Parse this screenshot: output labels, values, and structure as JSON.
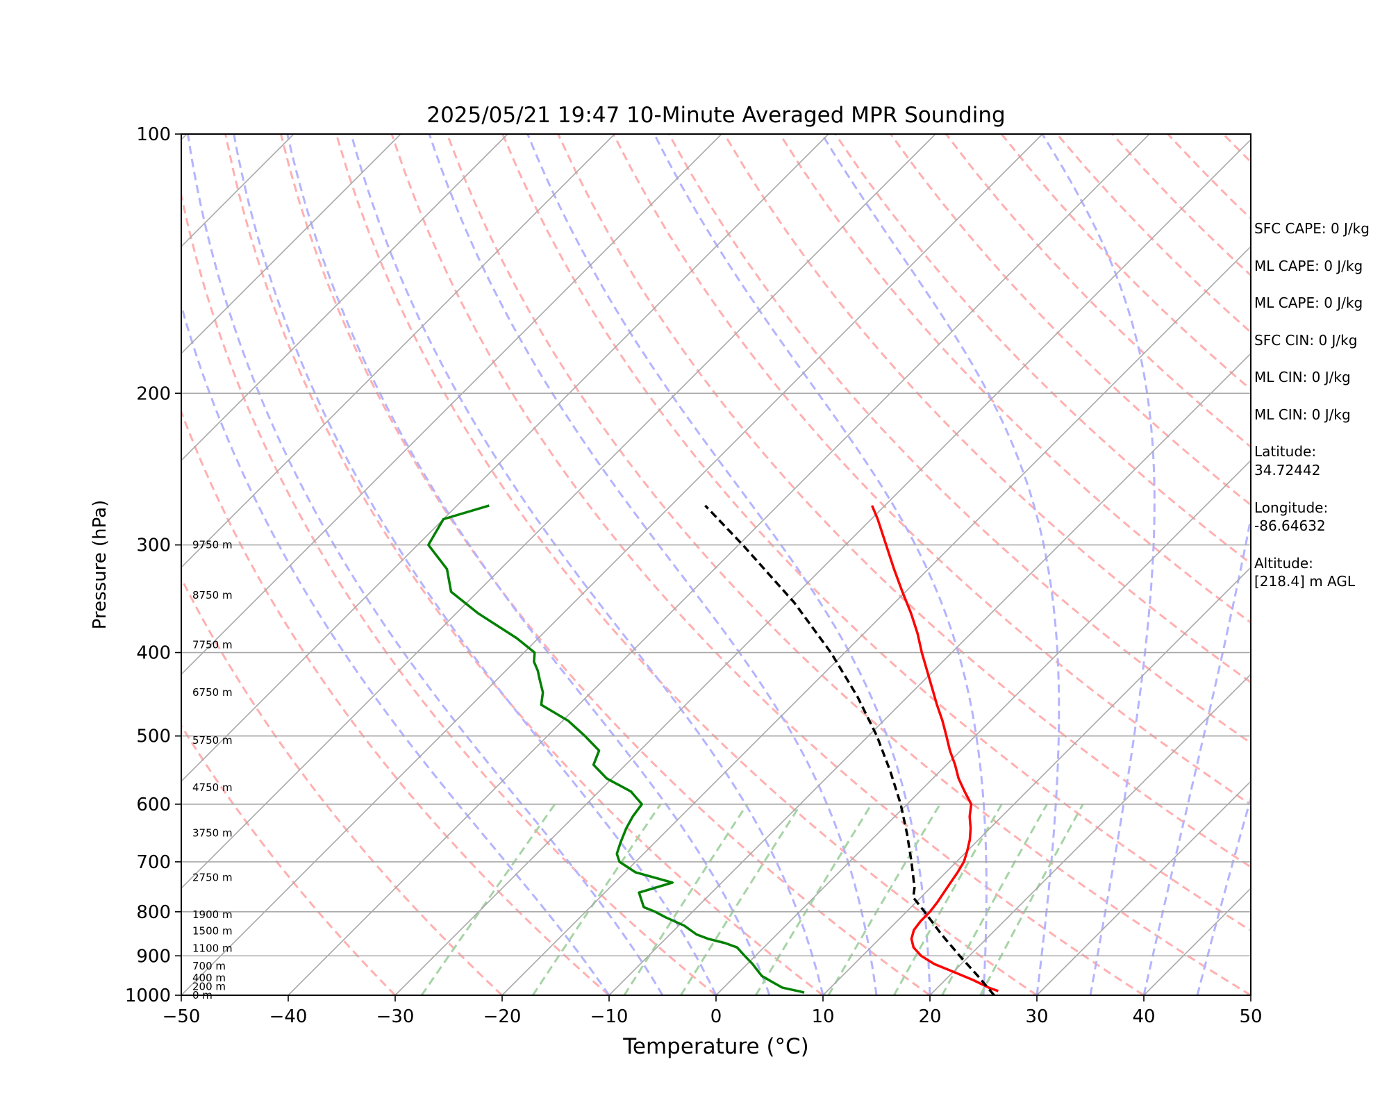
{
  "chart_data": {
    "type": "line",
    "title": "2025/05/21 19:47 10-Minute Averaged MPR Sounding",
    "xlabel": "Temperature (°C)",
    "ylabel": "Pressure (hPa)",
    "xlim": [
      -50,
      50
    ],
    "ylim": [
      1000,
      100
    ],
    "y_scale": "log",
    "skew": true,
    "grid": true,
    "x_ticks": [
      "−50",
      "−40",
      "−30",
      "−20",
      "−10",
      "0",
      "10",
      "20",
      "30",
      "40",
      "50"
    ],
    "y_ticks": [
      "100",
      "200",
      "300",
      "400",
      "500",
      "600",
      "700",
      "800",
      "900",
      "1000"
    ],
    "height_labels": [
      {
        "text": "0 m",
        "p": 1000
      },
      {
        "text": "200 m",
        "p": 977
      },
      {
        "text": "400 m",
        "p": 955
      },
      {
        "text": "700 m",
        "p": 925
      },
      {
        "text": "1100 m",
        "p": 882
      },
      {
        "text": "1500 m",
        "p": 842
      },
      {
        "text": "1900 m",
        "p": 806
      },
      {
        "text": "2750 m",
        "p": 730
      },
      {
        "text": "3750 m",
        "p": 648
      },
      {
        "text": "4750 m",
        "p": 574
      },
      {
        "text": "5750 m",
        "p": 506
      },
      {
        "text": "6750 m",
        "p": 445
      },
      {
        "text": "7750 m",
        "p": 392
      },
      {
        "text": "8750 m",
        "p": 343
      },
      {
        "text": "9750 m",
        "p": 300
      }
    ],
    "series": [
      {
        "key": "temperature",
        "color": "#ff0000",
        "p": [
          989,
          980,
          960,
          940,
          920,
          900,
          880,
          860,
          840,
          820,
          800,
          780,
          760,
          740,
          720,
          700,
          680,
          660,
          640,
          620,
          600,
          580,
          560,
          540,
          520,
          500,
          480,
          460,
          440,
          420,
          400,
          380,
          360,
          340,
          320,
          300,
          280,
          270
        ],
        "t": [
          26.0,
          24.8,
          22.6,
          20.1,
          17.5,
          15.5,
          14.0,
          13.0,
          12.4,
          12.2,
          12.2,
          12.0,
          11.7,
          11.4,
          11.1,
          10.7,
          10.0,
          9.2,
          8.2,
          7.0,
          6.0,
          4.2,
          2.4,
          0.8,
          -1.0,
          -2.7,
          -4.5,
          -6.5,
          -8.5,
          -10.6,
          -12.8,
          -15.0,
          -17.5,
          -20.3,
          -23.2,
          -26.2,
          -29.4,
          -31.2
        ]
      },
      {
        "key": "dewpoint",
        "color": "#008000",
        "p": [
          993,
          990,
          980,
          965,
          950,
          935,
          920,
          900,
          880,
          870,
          860,
          850,
          830,
          812,
          800,
          790,
          760,
          740,
          720,
          700,
          685,
          665,
          640,
          620,
          600,
          580,
          560,
          540,
          520,
          500,
          480,
          460,
          445,
          430,
          420,
          410,
          400,
          385,
          360,
          340,
          320,
          300,
          280,
          270
        ],
        "t": [
          8.0,
          7.5,
          5.5,
          4.0,
          2.5,
          1.5,
          0.5,
          -1.0,
          -2.5,
          -4.0,
          -6.0,
          -7.5,
          -9.5,
          -12.0,
          -13.5,
          -15.0,
          -16.8,
          -14.6,
          -19.0,
          -21.5,
          -22.5,
          -23.2,
          -24.0,
          -24.5,
          -24.8,
          -27.0,
          -30.5,
          -33.0,
          -33.8,
          -36.5,
          -39.5,
          -43.5,
          -44.5,
          -46.0,
          -47.0,
          -48.2,
          -49.0,
          -52.0,
          -58.0,
          -62.5,
          -65.0,
          -69.0,
          -70.0,
          -67.0
        ]
      },
      {
        "key": "parcel",
        "color": "#000000",
        "p": [
          1000,
          950,
          900,
          850,
          800,
          770,
          750,
          700,
          650,
          600,
          550,
          500,
          450,
          400,
          350,
          300,
          270
        ],
        "t": [
          26.0,
          22.7,
          19.1,
          15.4,
          11.7,
          9.3,
          8.5,
          5.8,
          2.8,
          -0.6,
          -4.6,
          -9.2,
          -14.7,
          -21.3,
          -29.4,
          -39.6,
          -46.8
        ]
      }
    ]
  },
  "info": [
    "SFC CAPE: 0 J/kg",
    "ML CAPE: 0 J/kg",
    "ML CAPE: 0 J/kg",
    "SFC CIN: 0 J/kg",
    "ML CIN: 0 J/kg",
    "ML CIN: 0 J/kg",
    "Latitude:",
    "34.72442",
    "Longitude:",
    "-86.64632",
    "Altitude:",
    "[218.4] m AGL"
  ],
  "colors": {
    "isotherm": "#a8a8a8",
    "isobar": "#a8a8a8",
    "dry_adiabat": "#ffb0b0",
    "moist_adiabat": "#b4b4ff",
    "mixing_ratio": "#a6d4a6"
  }
}
